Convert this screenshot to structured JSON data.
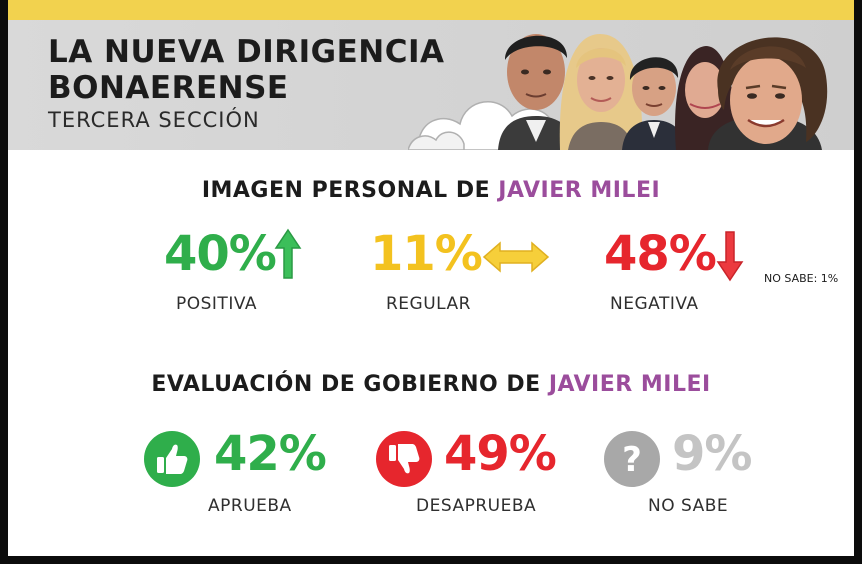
{
  "header": {
    "title_line1": "LA NUEVA DIRIGENCIA",
    "title_line2": "BONAERENSE",
    "subtitle": "TERCERA SECCIÓN"
  },
  "imagen": {
    "title_prefix": "IMAGEN PERSONAL DE ",
    "title_name": "JAVIER MILEI",
    "items": [
      {
        "value": "40%",
        "label": "POSITIVA",
        "color": "#2fae4b",
        "icon": "arrow-up-icon"
      },
      {
        "value": "11%",
        "label": "REGULAR",
        "color": "#f3c21f",
        "icon": "double-arrow-icon"
      },
      {
        "value": "48%",
        "label": "NEGATIVA",
        "color": "#e6262d",
        "icon": "arrow-down-icon"
      }
    ],
    "note": "NO SABE: 1%"
  },
  "evaluacion": {
    "title_prefix": "EVALUACIÓN DE GOBIERNO DE ",
    "title_name": "JAVIER MILEI",
    "items": [
      {
        "value": "42%",
        "label": "APRUEBA",
        "color": "#2fae4b",
        "icon": "thumbs-up-icon"
      },
      {
        "value": "49%",
        "label": "DESAPRUEBA",
        "color": "#e6262d",
        "icon": "thumbs-down-icon"
      },
      {
        "value": "9%",
        "label": "NO SABE",
        "color": "#c4c4c4",
        "icon": "question-icon"
      }
    ]
  },
  "colors": {
    "accent_purple": "#9b4d9c",
    "header_yellow": "#f2d24e"
  }
}
